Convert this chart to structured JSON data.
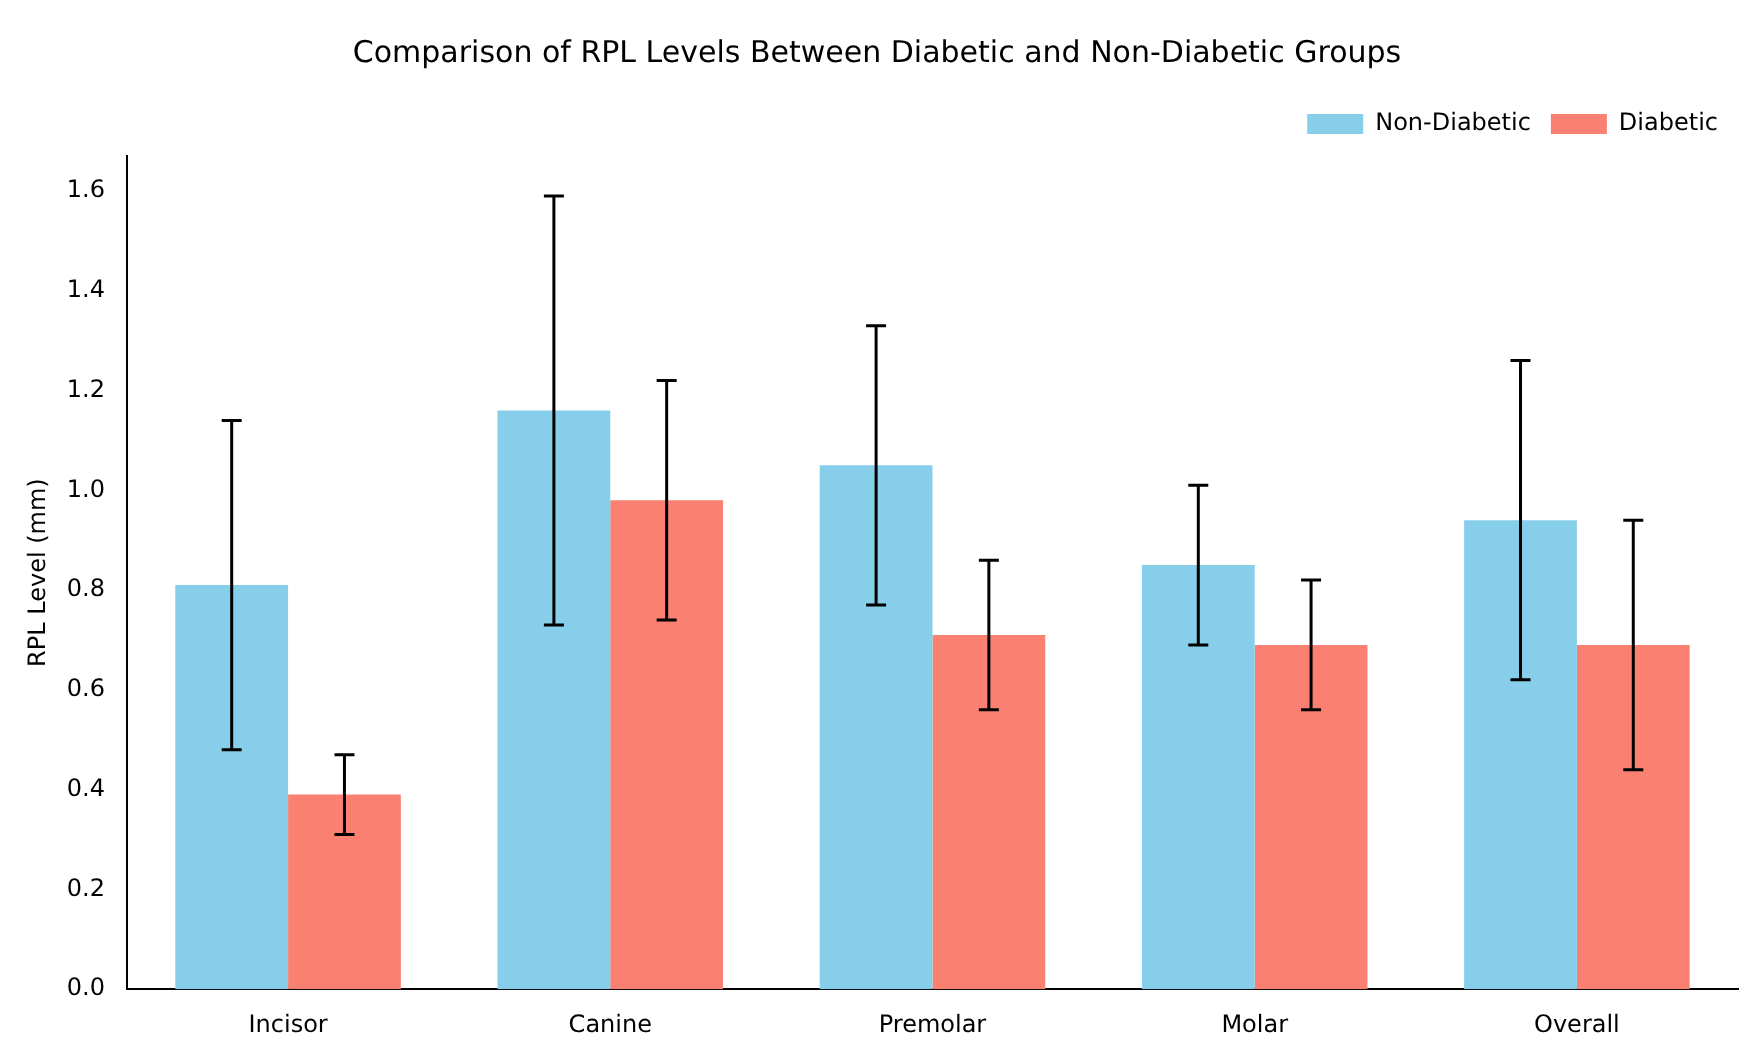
{
  "chart_data": {
    "type": "bar",
    "title": "Comparison of RPL Levels Between Diabetic and Non-Diabetic Groups",
    "ylabel": "RPL Level (mm)",
    "categories": [
      "Incisor",
      "Canine",
      "Premolar",
      "Molar",
      "Overall"
    ],
    "series": [
      {
        "name": "Non-Diabetic",
        "color": "#87ceeb",
        "values": [
          0.81,
          1.16,
          1.05,
          0.85,
          0.94
        ],
        "errors": [
          0.33,
          0.43,
          0.28,
          0.16,
          0.32
        ]
      },
      {
        "name": "Diabetic",
        "color": "#fa8072",
        "values": [
          0.39,
          0.98,
          0.71,
          0.69,
          0.69
        ],
        "errors": [
          0.08,
          0.24,
          0.15,
          0.13,
          0.25
        ]
      }
    ],
    "ylim": [
      0,
      1.67
    ],
    "yticks": [
      {
        "value": 0,
        "label": "0.0"
      },
      0.2,
      0.4,
      0.6,
      0.8,
      {
        "value": 1,
        "label": "1.0"
      },
      1.2,
      1.4,
      1.6
    ],
    "grid": false,
    "legend": "top right"
  }
}
